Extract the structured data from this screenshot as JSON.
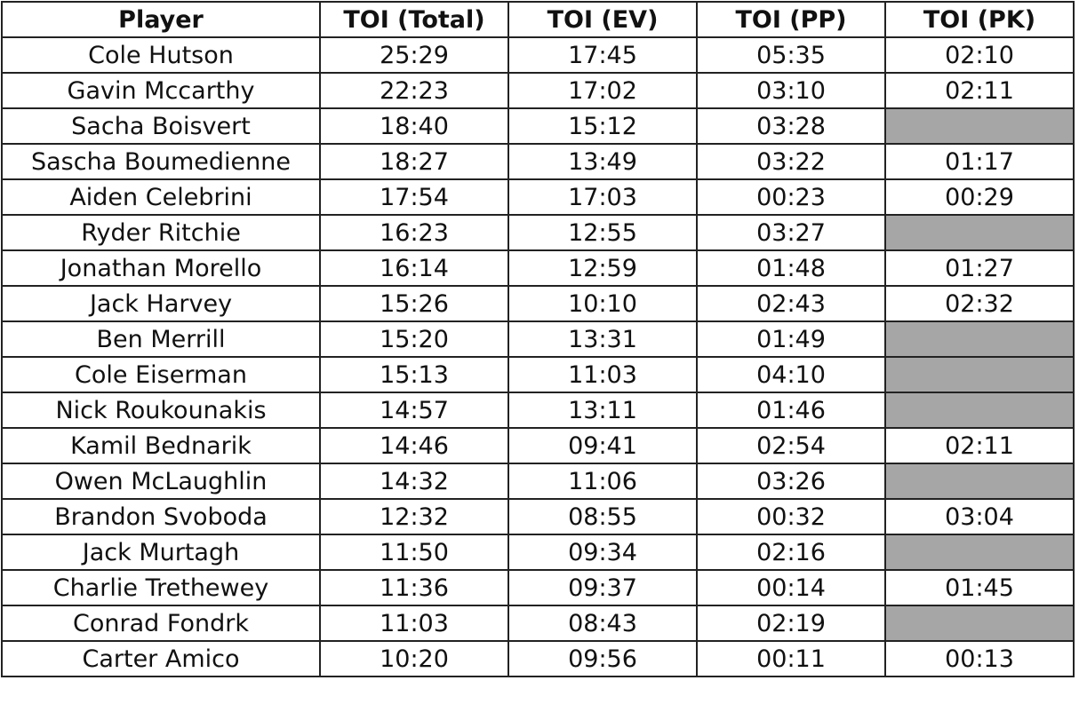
{
  "table": {
    "header": [
      "Player",
      "TOI (Total)",
      "TOI (EV)",
      "TOI (PP)",
      "TOI (PK)"
    ],
    "rows": [
      [
        "Cole Hutson",
        "25:29",
        "17:45",
        "05:35",
        "02:10"
      ],
      [
        "Gavin Mccarthy",
        "22:23",
        "17:02",
        "03:10",
        "02:11"
      ],
      [
        "Sacha Boisvert",
        "18:40",
        "15:12",
        "03:28",
        null
      ],
      [
        "Sascha Boumedienne",
        "18:27",
        "13:49",
        "03:22",
        "01:17"
      ],
      [
        "Aiden Celebrini",
        "17:54",
        "17:03",
        "00:23",
        "00:29"
      ],
      [
        "Ryder Ritchie",
        "16:23",
        "12:55",
        "03:27",
        null
      ],
      [
        "Jonathan Morello",
        "16:14",
        "12:59",
        "01:48",
        "01:27"
      ],
      [
        "Jack Harvey",
        "15:26",
        "10:10",
        "02:43",
        "02:32"
      ],
      [
        "Ben Merrill",
        "15:20",
        "13:31",
        "01:49",
        null
      ],
      [
        "Cole Eiserman",
        "15:13",
        "11:03",
        "04:10",
        null
      ],
      [
        "Nick Roukounakis",
        "14:57",
        "13:11",
        "01:46",
        null
      ],
      [
        "Kamil Bednarik",
        "14:46",
        "09:41",
        "02:54",
        "02:11"
      ],
      [
        "Owen McLaughlin",
        "14:32",
        "11:06",
        "03:26",
        null
      ],
      [
        "Brandon Svoboda",
        "12:32",
        "08:55",
        "00:32",
        "03:04"
      ],
      [
        "Jack Murtagh",
        "11:50",
        "09:34",
        "02:16",
        null
      ],
      [
        "Charlie Trethewey",
        "11:36",
        "09:37",
        "00:14",
        "01:45"
      ],
      [
        "Conrad Fondrk",
        "11:03",
        "08:43",
        "02:19",
        null
      ],
      [
        "Carter Amico",
        "10:20",
        "09:56",
        "00:11",
        "00:13"
      ]
    ]
  }
}
